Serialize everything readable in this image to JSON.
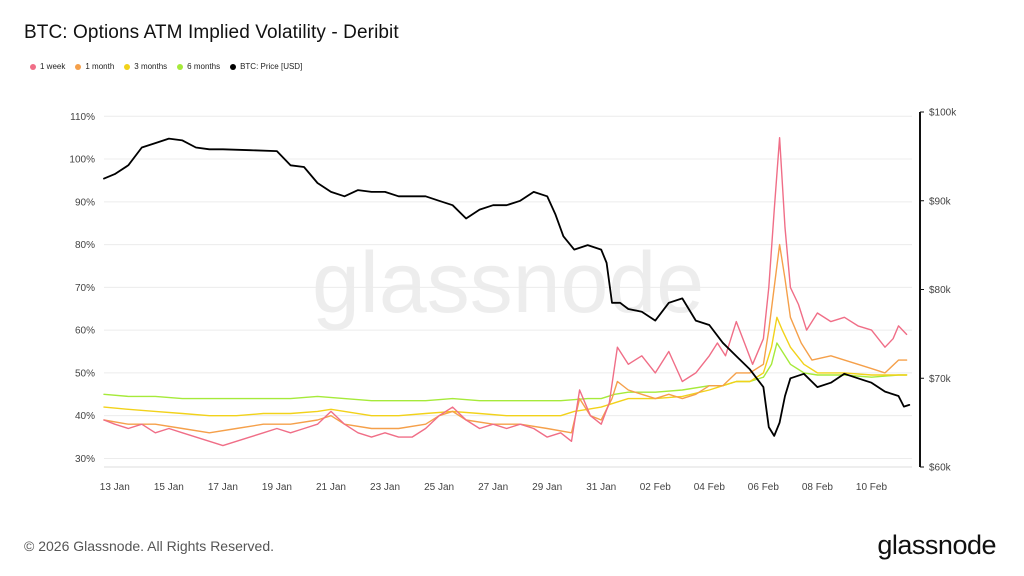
{
  "title": "BTC: Options ATM Implied Volatility - Deribit",
  "footer": "© 2026 Glassnode. All Rights Reserved.",
  "brand": "glassnode",
  "watermark": "glassnode",
  "colors": {
    "1 week": "#f06e87",
    "1 month": "#f5a04a",
    "3 months": "#f2d21a",
    "6 months": "#a6ea3a",
    "price": "#000000"
  },
  "chart_data": {
    "type": "line",
    "title": "BTC: Options ATM Implied Volatility - Deribit",
    "x_ticks": [
      "13 Jan",
      "15 Jan",
      "17 Jan",
      "19 Jan",
      "21 Jan",
      "23 Jan",
      "25 Jan",
      "27 Jan",
      "29 Jan",
      "31 Jan",
      "02 Feb",
      "04 Feb",
      "06 Feb",
      "08 Feb",
      "10 Feb"
    ],
    "y_left": {
      "ticks": [
        "30%",
        "40%",
        "50%",
        "60%",
        "70%",
        "80%",
        "90%",
        "100%",
        "110%"
      ],
      "range": [
        28,
        111
      ]
    },
    "y_right": {
      "ticks": [
        "$60k",
        "$70k",
        "$80k",
        "$90k",
        "$100k"
      ],
      "range": [
        60000,
        100000
      ]
    },
    "grid": true,
    "legend_position": "top-left",
    "x_range_days": [
      12.6,
      42.5
    ],
    "series": [
      {
        "name": "1 week",
        "axis": "left",
        "points": [
          [
            12.6,
            39
          ],
          [
            13.0,
            38
          ],
          [
            13.5,
            37
          ],
          [
            14.0,
            38
          ],
          [
            14.5,
            36
          ],
          [
            15.0,
            37
          ],
          [
            15.5,
            36
          ],
          [
            16.0,
            35
          ],
          [
            16.5,
            34
          ],
          [
            17.0,
            33
          ],
          [
            17.5,
            34
          ],
          [
            18.0,
            35
          ],
          [
            18.5,
            36
          ],
          [
            19.0,
            37
          ],
          [
            19.5,
            36
          ],
          [
            20.0,
            37
          ],
          [
            20.5,
            38
          ],
          [
            21.0,
            41
          ],
          [
            21.5,
            38
          ],
          [
            22.0,
            36
          ],
          [
            22.5,
            35
          ],
          [
            23.0,
            36
          ],
          [
            23.5,
            35
          ],
          [
            24.0,
            35
          ],
          [
            24.5,
            37
          ],
          [
            25.0,
            40
          ],
          [
            25.5,
            42
          ],
          [
            26.0,
            39
          ],
          [
            26.5,
            37
          ],
          [
            27.0,
            38
          ],
          [
            27.5,
            37
          ],
          [
            28.0,
            38
          ],
          [
            28.5,
            37
          ],
          [
            29.0,
            35
          ],
          [
            29.5,
            36
          ],
          [
            29.9,
            34
          ],
          [
            30.2,
            46
          ],
          [
            30.6,
            40
          ],
          [
            31.0,
            38
          ],
          [
            31.3,
            43
          ],
          [
            31.6,
            56
          ],
          [
            32.0,
            52
          ],
          [
            32.5,
            54
          ],
          [
            33.0,
            50
          ],
          [
            33.5,
            55
          ],
          [
            34.0,
            48
          ],
          [
            34.5,
            50
          ],
          [
            35.0,
            54
          ],
          [
            35.3,
            57
          ],
          [
            35.6,
            54
          ],
          [
            36.0,
            62
          ],
          [
            36.3,
            57
          ],
          [
            36.6,
            52
          ],
          [
            37.0,
            58
          ],
          [
            37.2,
            70
          ],
          [
            37.4,
            88
          ],
          [
            37.6,
            105
          ],
          [
            37.8,
            84
          ],
          [
            38.0,
            70
          ],
          [
            38.3,
            66
          ],
          [
            38.6,
            60
          ],
          [
            39.0,
            64
          ],
          [
            39.5,
            62
          ],
          [
            40.0,
            63
          ],
          [
            40.5,
            61
          ],
          [
            41.0,
            60
          ],
          [
            41.5,
            56
          ],
          [
            41.8,
            58
          ],
          [
            42.0,
            61
          ],
          [
            42.3,
            59
          ]
        ]
      },
      {
        "name": "1 month",
        "axis": "left",
        "points": [
          [
            12.6,
            39
          ],
          [
            13.5,
            38
          ],
          [
            14.5,
            38
          ],
          [
            15.5,
            37
          ],
          [
            16.5,
            36
          ],
          [
            17.5,
            37
          ],
          [
            18.5,
            38
          ],
          [
            19.5,
            38
          ],
          [
            20.5,
            39
          ],
          [
            21.0,
            40
          ],
          [
            21.5,
            38
          ],
          [
            22.5,
            37
          ],
          [
            23.5,
            37
          ],
          [
            24.5,
            38
          ],
          [
            25.0,
            40
          ],
          [
            25.5,
            41
          ],
          [
            26.0,
            39
          ],
          [
            27.0,
            38
          ],
          [
            28.0,
            38
          ],
          [
            29.0,
            37
          ],
          [
            29.9,
            36
          ],
          [
            30.2,
            44
          ],
          [
            30.6,
            40
          ],
          [
            31.0,
            39
          ],
          [
            31.4,
            44
          ],
          [
            31.6,
            48
          ],
          [
            32.0,
            46
          ],
          [
            32.5,
            45
          ],
          [
            33.0,
            44
          ],
          [
            33.5,
            45
          ],
          [
            34.0,
            44
          ],
          [
            34.5,
            45
          ],
          [
            35.0,
            47
          ],
          [
            35.5,
            47
          ],
          [
            36.0,
            50
          ],
          [
            36.5,
            50
          ],
          [
            37.0,
            52
          ],
          [
            37.2,
            60
          ],
          [
            37.4,
            70
          ],
          [
            37.6,
            80
          ],
          [
            37.8,
            72
          ],
          [
            38.0,
            63
          ],
          [
            38.4,
            57
          ],
          [
            38.8,
            53
          ],
          [
            39.5,
            54
          ],
          [
            40.0,
            53
          ],
          [
            40.5,
            52
          ],
          [
            41.0,
            51
          ],
          [
            41.5,
            50
          ],
          [
            42.0,
            53
          ],
          [
            42.3,
            53
          ]
        ]
      },
      {
        "name": "3 months",
        "axis": "left",
        "points": [
          [
            12.6,
            42
          ],
          [
            13.5,
            41.5
          ],
          [
            14.5,
            41
          ],
          [
            15.5,
            40.5
          ],
          [
            16.5,
            40
          ],
          [
            17.5,
            40
          ],
          [
            18.5,
            40.5
          ],
          [
            19.5,
            40.5
          ],
          [
            20.5,
            41
          ],
          [
            21.0,
            41.5
          ],
          [
            21.5,
            41
          ],
          [
            22.5,
            40
          ],
          [
            23.5,
            40
          ],
          [
            24.5,
            40.5
          ],
          [
            25.5,
            41
          ],
          [
            26.5,
            40.5
          ],
          [
            27.5,
            40
          ],
          [
            28.5,
            40
          ],
          [
            29.5,
            40
          ],
          [
            30.0,
            41
          ],
          [
            30.5,
            41.5
          ],
          [
            31.0,
            42
          ],
          [
            31.5,
            43
          ],
          [
            32.0,
            44
          ],
          [
            33.0,
            44
          ],
          [
            34.0,
            44.5
          ],
          [
            35.0,
            46
          ],
          [
            35.5,
            47
          ],
          [
            36.0,
            48
          ],
          [
            36.5,
            48
          ],
          [
            37.0,
            50
          ],
          [
            37.3,
            56
          ],
          [
            37.5,
            63
          ],
          [
            37.7,
            60
          ],
          [
            38.0,
            56
          ],
          [
            38.5,
            52
          ],
          [
            39.0,
            50
          ],
          [
            39.5,
            50
          ],
          [
            40.0,
            50
          ],
          [
            41.0,
            49.5
          ],
          [
            42.0,
            49.5
          ],
          [
            42.3,
            49.5
          ]
        ]
      },
      {
        "name": "6 months",
        "axis": "left",
        "points": [
          [
            12.6,
            45
          ],
          [
            13.5,
            44.5
          ],
          [
            14.5,
            44.5
          ],
          [
            15.5,
            44
          ],
          [
            16.5,
            44
          ],
          [
            17.5,
            44
          ],
          [
            18.5,
            44
          ],
          [
            19.5,
            44
          ],
          [
            20.5,
            44.5
          ],
          [
            21.5,
            44
          ],
          [
            22.5,
            43.5
          ],
          [
            23.5,
            43.5
          ],
          [
            24.5,
            43.5
          ],
          [
            25.5,
            44
          ],
          [
            26.5,
            43.5
          ],
          [
            27.5,
            43.5
          ],
          [
            28.5,
            43.5
          ],
          [
            29.5,
            43.5
          ],
          [
            30.5,
            44
          ],
          [
            31.0,
            44
          ],
          [
            31.5,
            45
          ],
          [
            32.0,
            45.5
          ],
          [
            33.0,
            45.5
          ],
          [
            34.0,
            46
          ],
          [
            35.0,
            47
          ],
          [
            35.5,
            47
          ],
          [
            36.0,
            48
          ],
          [
            36.5,
            48
          ],
          [
            37.0,
            49
          ],
          [
            37.3,
            52
          ],
          [
            37.5,
            57
          ],
          [
            37.8,
            54
          ],
          [
            38.0,
            52
          ],
          [
            38.5,
            50
          ],
          [
            39.0,
            49.5
          ],
          [
            40.0,
            49.5
          ],
          [
            41.0,
            49
          ],
          [
            42.0,
            49.5
          ],
          [
            42.3,
            49.5
          ]
        ]
      },
      {
        "name": "BTC: Price [USD]",
        "axis": "right",
        "points": [
          [
            12.6,
            92500
          ],
          [
            13.0,
            93000
          ],
          [
            13.5,
            94000
          ],
          [
            14.0,
            96000
          ],
          [
            14.5,
            96500
          ],
          [
            15.0,
            97000
          ],
          [
            15.5,
            96800
          ],
          [
            16.0,
            96000
          ],
          [
            16.5,
            95800
          ],
          [
            17.0,
            95800
          ],
          [
            18.0,
            95700
          ],
          [
            19.0,
            95600
          ],
          [
            19.5,
            94000
          ],
          [
            20.0,
            93800
          ],
          [
            20.5,
            92000
          ],
          [
            21.0,
            91000
          ],
          [
            21.5,
            90500
          ],
          [
            22.0,
            91200
          ],
          [
            22.5,
            91000
          ],
          [
            23.0,
            91000
          ],
          [
            23.5,
            90500
          ],
          [
            24.0,
            90500
          ],
          [
            24.5,
            90500
          ],
          [
            25.0,
            90000
          ],
          [
            25.5,
            89500
          ],
          [
            26.0,
            88000
          ],
          [
            26.5,
            89000
          ],
          [
            27.0,
            89500
          ],
          [
            27.5,
            89500
          ],
          [
            28.0,
            90000
          ],
          [
            28.5,
            91000
          ],
          [
            29.0,
            90500
          ],
          [
            29.3,
            88500
          ],
          [
            29.6,
            86000
          ],
          [
            30.0,
            84500
          ],
          [
            30.5,
            85000
          ],
          [
            31.0,
            84500
          ],
          [
            31.2,
            83000
          ],
          [
            31.4,
            78500
          ],
          [
            31.7,
            78500
          ],
          [
            32.0,
            77800
          ],
          [
            32.5,
            77500
          ],
          [
            33.0,
            76500
          ],
          [
            33.5,
            78500
          ],
          [
            34.0,
            79000
          ],
          [
            34.5,
            76500
          ],
          [
            35.0,
            76000
          ],
          [
            35.5,
            74000
          ],
          [
            36.0,
            72500
          ],
          [
            36.5,
            71000
          ],
          [
            37.0,
            69000
          ],
          [
            37.2,
            64500
          ],
          [
            37.4,
            63500
          ],
          [
            37.6,
            65000
          ],
          [
            37.8,
            68000
          ],
          [
            38.0,
            70000
          ],
          [
            38.5,
            70500
          ],
          [
            39.0,
            69000
          ],
          [
            39.5,
            69500
          ],
          [
            40.0,
            70500
          ],
          [
            40.5,
            70000
          ],
          [
            41.0,
            69500
          ],
          [
            41.5,
            68500
          ],
          [
            42.0,
            68000
          ],
          [
            42.2,
            66800
          ],
          [
            42.4,
            67000
          ]
        ]
      }
    ]
  }
}
